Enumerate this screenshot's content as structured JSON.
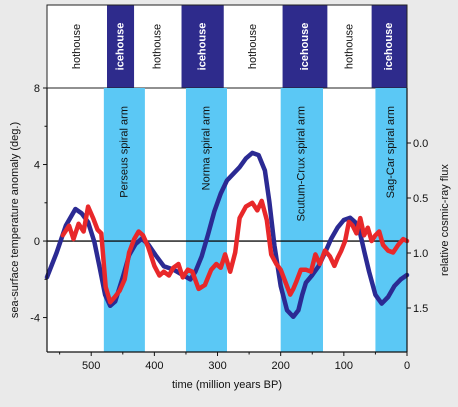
{
  "chart_data": {
    "type": "line",
    "xlabel": "time (million years BP)",
    "ylabel_left": "sea-surface temperature anomaly (deg.)",
    "ylabel_right": "relative cosmic-ray flux",
    "xlim": [
      570,
      0
    ],
    "ylim_left": [
      -5.8,
      8
    ],
    "ylim_right": [
      1.9,
      -0.5
    ],
    "x_ticks": [
      500,
      400,
      300,
      200,
      100,
      0
    ],
    "y_ticks_left": [
      -4,
      0,
      4,
      8
    ],
    "y_ticks_right": [
      0.0,
      0.5,
      1.0,
      1.5
    ],
    "y_tick_labels_right": [
      "0.0",
      "0.5",
      "1.0",
      "1.5"
    ],
    "zero_line": 0,
    "climate_modes": [
      {
        "label": "hothouse",
        "start": 570,
        "end": 475,
        "color": "#ffffff",
        "text_color": "#111111"
      },
      {
        "label": "icehouse",
        "start": 475,
        "end": 432,
        "color": "#2e2b8c",
        "text_color": "#ffffff"
      },
      {
        "label": "hothouse",
        "start": 432,
        "end": 357,
        "color": "#ffffff",
        "text_color": "#111111"
      },
      {
        "label": "icehouse",
        "start": 357,
        "end": 290,
        "color": "#2e2b8c",
        "text_color": "#ffffff"
      },
      {
        "label": "hothouse",
        "start": 290,
        "end": 197,
        "color": "#ffffff",
        "text_color": "#111111"
      },
      {
        "label": "icehouse",
        "start": 197,
        "end": 126,
        "color": "#2e2b8c",
        "text_color": "#ffffff"
      },
      {
        "label": "hothouse",
        "start": 126,
        "end": 56,
        "color": "#ffffff",
        "text_color": "#111111"
      },
      {
        "label": "icehouse",
        "start": 56,
        "end": 0,
        "color": "#2e2b8c",
        "text_color": "#ffffff"
      }
    ],
    "spiral_arms": [
      {
        "label": "Perseus spiral arm",
        "start": 480,
        "end": 415
      },
      {
        "label": "Norma spiral arm",
        "start": 350,
        "end": 285
      },
      {
        "label": "Scutum-Crux spiral arm",
        "start": 200,
        "end": 133
      },
      {
        "label": "Sag-Car spiral arm",
        "start": 50,
        "end": 0
      }
    ],
    "series": [
      {
        "axis": "right",
        "color": "#2b2a93",
        "x": [
          570,
          555,
          540,
          525,
          515,
          505,
          495,
          487,
          478,
          470,
          462,
          450,
          440,
          430,
          420,
          410,
          398,
          385,
          370,
          355,
          343,
          335,
          325,
          315,
          305,
          295,
          285,
          275,
          265,
          255,
          245,
          235,
          225,
          218,
          210,
          200,
          190,
          180,
          172,
          166,
          160,
          150,
          140,
          130,
          120,
          110,
          100,
          90,
          82,
          75,
          68,
          60,
          50,
          40,
          30,
          20,
          10,
          0
        ],
        "y": [
          1.22,
          1.0,
          0.75,
          0.6,
          0.64,
          0.72,
          0.9,
          1.12,
          1.38,
          1.48,
          1.44,
          1.22,
          1.02,
          0.92,
          0.87,
          0.92,
          1.02,
          1.12,
          1.15,
          1.2,
          1.24,
          1.17,
          1.03,
          0.83,
          0.62,
          0.46,
          0.34,
          0.28,
          0.22,
          0.14,
          0.09,
          0.11,
          0.25,
          0.53,
          0.93,
          1.3,
          1.52,
          1.58,
          1.52,
          1.38,
          1.27,
          1.2,
          1.12,
          1.0,
          0.87,
          0.77,
          0.7,
          0.68,
          0.72,
          0.8,
          0.98,
          1.17,
          1.38,
          1.46,
          1.4,
          1.3,
          1.24,
          1.2
        ]
      },
      {
        "axis": "left",
        "color": "#e8282a",
        "x": [
          545,
          535,
          528,
          520,
          512,
          505,
          497,
          490,
          484,
          477,
          470,
          462,
          455,
          447,
          440,
          432,
          425,
          418,
          410,
          400,
          392,
          385,
          377,
          370,
          362,
          355,
          347,
          340,
          330,
          320,
          310,
          302,
          295,
          288,
          280,
          272,
          265,
          255,
          245,
          237,
          230,
          222,
          215,
          207,
          200,
          193,
          185,
          180,
          175,
          168,
          160,
          152,
          145,
          138,
          130,
          122,
          115,
          110,
          104,
          98,
          92,
          86,
          80,
          74,
          68,
          62,
          56,
          50,
          44,
          38,
          30,
          22,
          14,
          6,
          0
        ],
        "y": [
          0.3,
          0.8,
          0.1,
          0.9,
          0.5,
          1.8,
          1.2,
          0.6,
          0.4,
          -2.4,
          -3.2,
          -2.9,
          -2.6,
          -2.0,
          -0.6,
          0.1,
          0.5,
          0.3,
          -0.3,
          -1.3,
          -1.8,
          -1.6,
          -1.8,
          -1.4,
          -1.2,
          -1.9,
          -1.5,
          -1.6,
          -2.5,
          -2.3,
          -1.5,
          -1.2,
          -1.4,
          -0.7,
          -1.6,
          -0.6,
          1.2,
          1.8,
          2.0,
          1.6,
          2.1,
          1.1,
          -0.7,
          -1.2,
          -1.5,
          -2.1,
          -2.8,
          -2.5,
          -2.1,
          -1.5,
          -1.5,
          -1.6,
          -0.7,
          -1.2,
          -0.5,
          -0.8,
          -1.3,
          -0.9,
          -0.5,
          0.0,
          1.0,
          0.8,
          0.4,
          1.2,
          0.3,
          0.7,
          0.0,
          0.3,
          0.5,
          -0.2,
          -0.5,
          -0.6,
          -0.2,
          0.1,
          0.0
        ]
      }
    ]
  }
}
